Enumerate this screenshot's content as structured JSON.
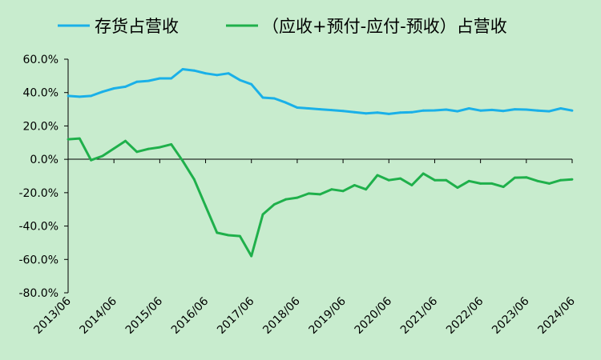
{
  "chart_data": {
    "type": "line",
    "ylim": [
      -0.8,
      0.6
    ],
    "yticks": [
      0.6,
      0.4,
      0.2,
      0.0,
      -0.2,
      -0.4,
      -0.6,
      -0.8
    ],
    "ytick_labels": [
      "60.0%",
      "40.0%",
      "20.0%",
      "0.0%",
      "-20.0%",
      "-40.0%",
      "-60.0%",
      "-80.0%"
    ],
    "x_start": "2013/06",
    "x_end": "2024/06",
    "xtick_labels": [
      "2013/06",
      "2014/06",
      "2015/06",
      "2016/06",
      "2017/06",
      "2018/06",
      "2019/06",
      "2020/06",
      "2021/06",
      "2022/06",
      "2023/06",
      "2024/06"
    ],
    "legend_position": "top",
    "x": [
      "2013/06",
      "2013/09",
      "2013/12",
      "2014/03",
      "2014/06",
      "2014/09",
      "2014/12",
      "2015/03",
      "2015/06",
      "2015/09",
      "2015/12",
      "2016/03",
      "2016/06",
      "2016/09",
      "2016/12",
      "2017/03",
      "2017/06",
      "2017/09",
      "2017/12",
      "2018/03",
      "2018/06",
      "2018/09",
      "2018/12",
      "2019/03",
      "2019/06",
      "2019/09",
      "2019/12",
      "2020/03",
      "2020/06",
      "2020/09",
      "2020/12",
      "2021/03",
      "2021/06",
      "2021/09",
      "2021/12",
      "2022/03",
      "2022/06",
      "2022/09",
      "2022/12",
      "2023/03",
      "2023/06",
      "2023/09",
      "2023/12",
      "2024/03",
      "2024/06"
    ],
    "series": [
      {
        "name": "存货占营收",
        "color": "#1ab0e8",
        "values": [
          0.38,
          0.375,
          0.38,
          0.405,
          0.425,
          0.435,
          0.465,
          0.47,
          0.485,
          0.485,
          0.54,
          0.532,
          0.515,
          0.505,
          0.515,
          0.475,
          0.45,
          0.37,
          0.365,
          0.34,
          0.31,
          0.305,
          0.3,
          0.295,
          0.29,
          0.282,
          0.275,
          0.28,
          0.272,
          0.28,
          0.282,
          0.292,
          0.293,
          0.298,
          0.288,
          0.305,
          0.292,
          0.296,
          0.29,
          0.3,
          0.298,
          0.292,
          0.288,
          0.305,
          0.292
        ]
      },
      {
        "name": "（应收+预付-应付-预收）占营收",
        "color": "#1fb04b",
        "values": [
          0.12,
          0.125,
          -0.005,
          0.02,
          0.065,
          0.11,
          0.045,
          0.062,
          0.072,
          0.09,
          -0.01,
          -0.12,
          -0.28,
          -0.44,
          -0.455,
          -0.46,
          -0.58,
          -0.33,
          -0.27,
          -0.24,
          -0.23,
          -0.205,
          -0.21,
          -0.18,
          -0.19,
          -0.155,
          -0.18,
          -0.095,
          -0.125,
          -0.115,
          -0.155,
          -0.085,
          -0.125,
          -0.125,
          -0.17,
          -0.13,
          -0.145,
          -0.145,
          -0.165,
          -0.11,
          -0.108,
          -0.13,
          -0.145,
          -0.125,
          -0.12
        ]
      }
    ]
  }
}
